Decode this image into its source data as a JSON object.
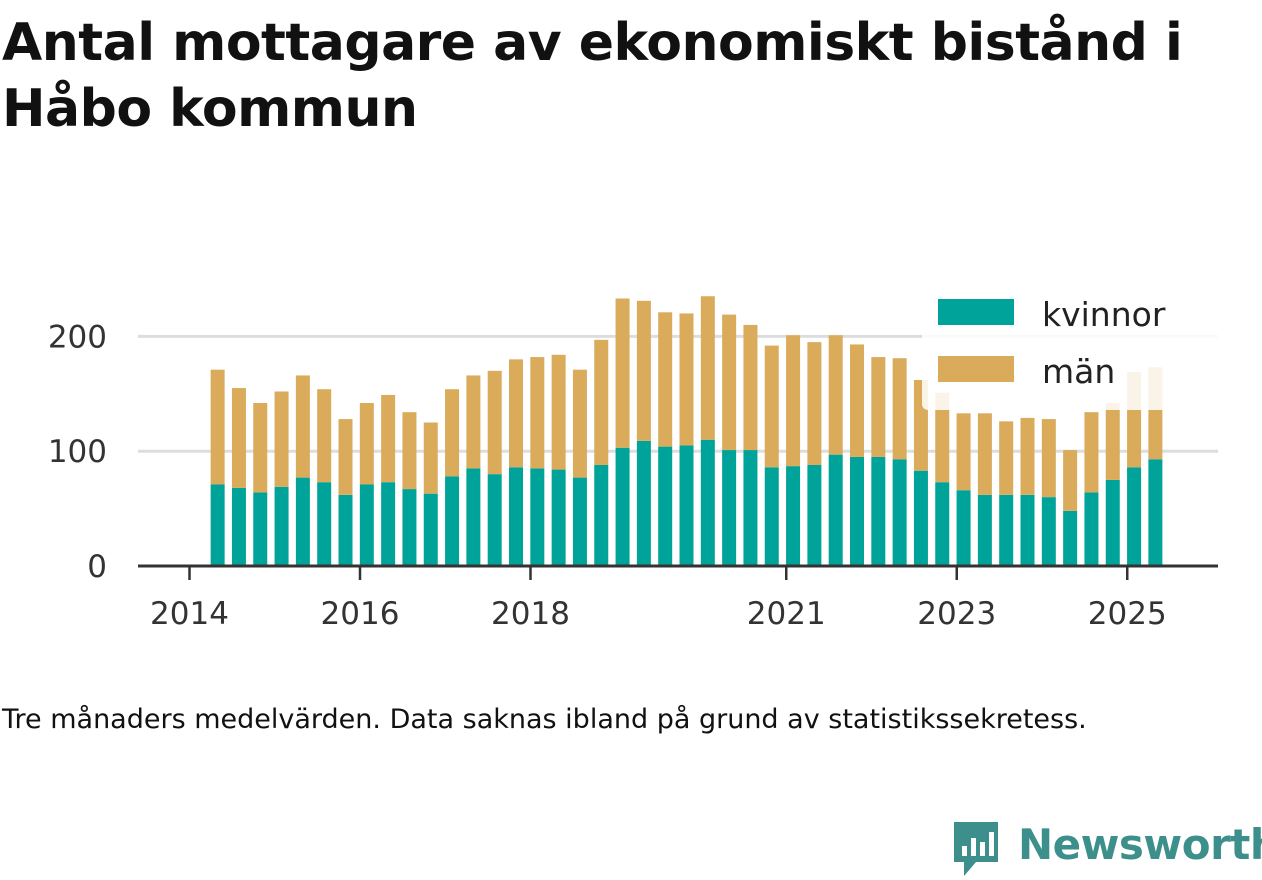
{
  "title": "Antal mottagare av ekonomiskt bistånd i Håbo kommun",
  "caption": "Tre månaders medelvärden. Data saknas ibland på grund av statistikssekretess.",
  "brand": {
    "name": "Newsworthy",
    "logo_icon": "newsworthy-logo-icon"
  },
  "colors": {
    "kvinnor": "#00a39a",
    "man": "#d9ab5b",
    "grid": "#dddddd",
    "axis": "#333333",
    "brand": "#3d8f8c"
  },
  "chart_data": {
    "type": "bar",
    "stacked": true,
    "title": "Antal mottagare av ekonomiskt bistånd i Håbo kommun",
    "xlabel": "",
    "ylabel": "",
    "ylim": [
      0,
      250
    ],
    "yticks": [
      0,
      100,
      200
    ],
    "xticks": [
      {
        "label": "2014",
        "at": 2014.0
      },
      {
        "label": "2016",
        "at": 2016.0
      },
      {
        "label": "2018",
        "at": 2018.0
      },
      {
        "label": "2021",
        "at": 2021.0
      },
      {
        "label": "2023",
        "at": 2023.0
      },
      {
        "label": "2025",
        "at": 2025.0
      }
    ],
    "x": [
      2014.33,
      2014.58,
      2014.83,
      2015.08,
      2015.33,
      2015.58,
      2015.83,
      2016.08,
      2016.33,
      2016.58,
      2016.83,
      2017.08,
      2017.33,
      2017.58,
      2017.83,
      2018.08,
      2018.33,
      2018.58,
      2018.83,
      2019.08,
      2019.33,
      2019.58,
      2019.83,
      2020.08,
      2020.33,
      2020.58,
      2020.83,
      2021.08,
      2021.33,
      2021.58,
      2021.83,
      2022.08,
      2022.33,
      2022.58,
      2022.83,
      2023.08,
      2023.33,
      2023.58,
      2023.83,
      2024.08,
      2024.33,
      2024.58,
      2024.83,
      2025.08,
      2025.33
    ],
    "legend": {
      "position": "top-right",
      "entries": [
        "kvinnor",
        "män"
      ]
    },
    "series": [
      {
        "name": "kvinnor",
        "values": [
          71,
          68,
          64,
          69,
          77,
          73,
          62,
          71,
          73,
          67,
          63,
          78,
          85,
          80,
          86,
          85,
          84,
          77,
          88,
          103,
          109,
          104,
          105,
          110,
          101,
          101,
          86,
          87,
          88,
          97,
          95,
          95,
          93,
          83,
          73,
          66,
          62,
          62,
          62,
          60,
          48,
          64,
          75,
          86,
          93
        ]
      },
      {
        "name": "män",
        "values": [
          100,
          87,
          78,
          83,
          89,
          81,
          66,
          71,
          76,
          67,
          62,
          76,
          81,
          90,
          94,
          97,
          100,
          94,
          109,
          130,
          122,
          117,
          115,
          125,
          118,
          109,
          106,
          114,
          107,
          104,
          98,
          87,
          88,
          79,
          78,
          67,
          71,
          64,
          67,
          68,
          53,
          70,
          67,
          83,
          80
        ]
      }
    ]
  }
}
